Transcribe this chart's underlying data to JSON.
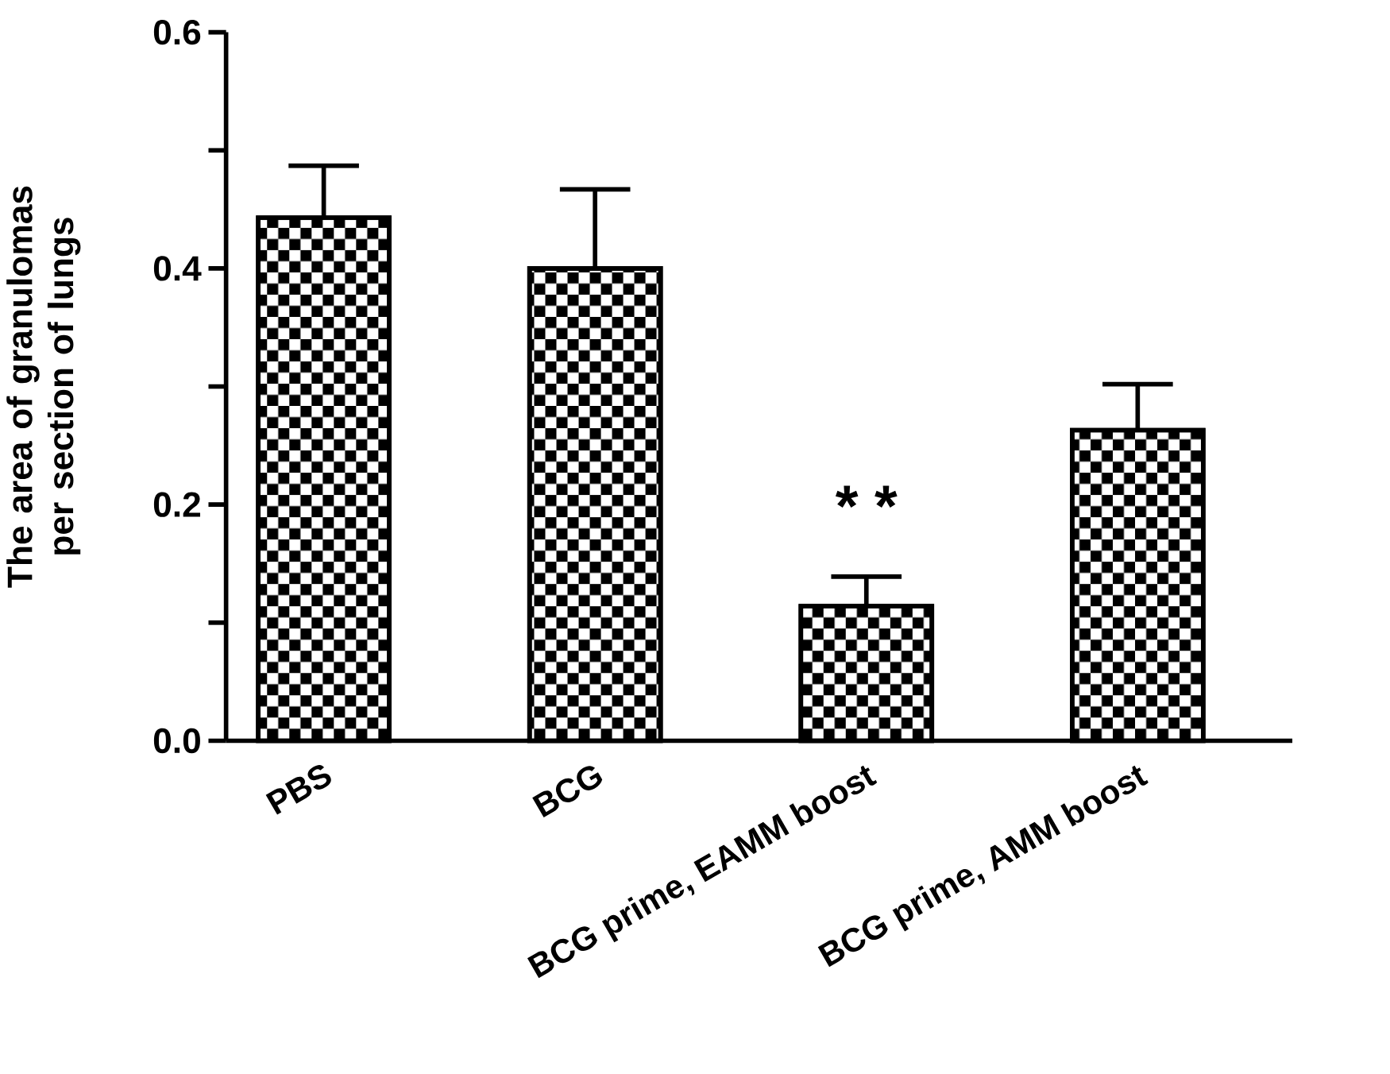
{
  "chart_data": {
    "type": "bar",
    "ylabel": "The area of granulomas per section of lungs",
    "categories": [
      "PBS",
      "BCG",
      "BCG prime, EAMM boost",
      "BCG prime, AMM boost"
    ],
    "values": [
      0.443,
      0.4,
      0.114,
      0.263
    ],
    "errors": [
      [
        0.443,
        0.487
      ],
      [
        0.4,
        0.467
      ],
      [
        0.114,
        0.139
      ],
      [
        0.263,
        0.302
      ]
    ],
    "color": "#000000",
    "ylim": [
      0,
      0.6
    ],
    "yticks": [
      {
        "value": 0,
        "label": "0.0"
      },
      {
        "value": 0.1,
        "label": null
      },
      {
        "value": 0.2,
        "label": "0.2"
      },
      {
        "value": 0.3,
        "label": null
      },
      {
        "value": 0.4,
        "label": "0.4"
      },
      {
        "value": 0.5,
        "label": null
      },
      {
        "value": 0.6,
        "label": "0.6"
      }
    ],
    "annotations": [
      "* *"
    ]
  }
}
